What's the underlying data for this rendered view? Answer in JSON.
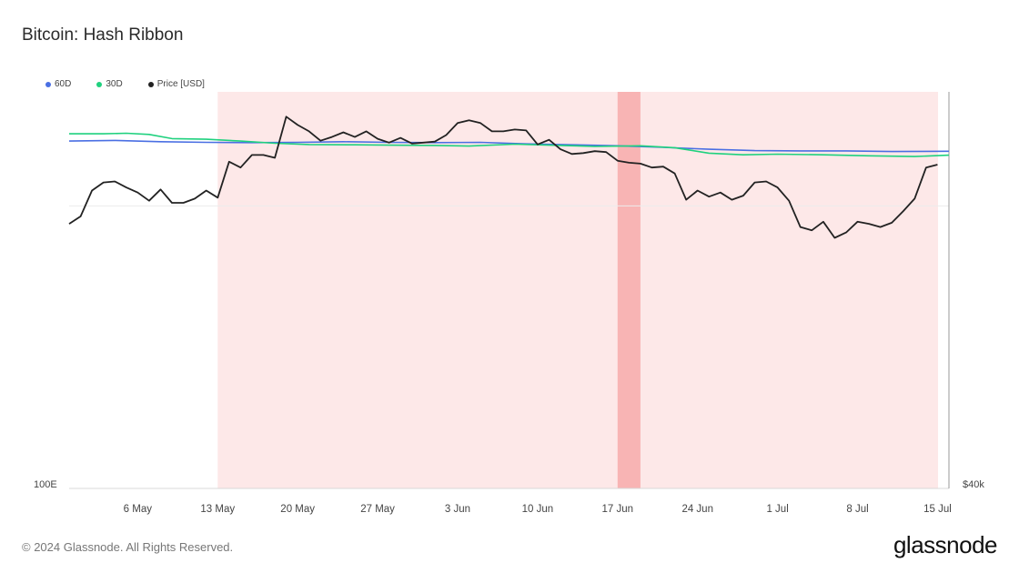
{
  "header": {
    "title": "Bitcoin: Hash Ribbon"
  },
  "legend": [
    {
      "label": "60D",
      "color": "#4a6fe3",
      "icon": "dot-icon"
    },
    {
      "label": "30D",
      "color": "#1fd17e",
      "icon": "dot-icon"
    },
    {
      "label": "Price [USD]",
      "color": "#222222",
      "icon": "dot-icon"
    }
  ],
  "footer": {
    "copyright": "© 2024 Glassnode. All Rights Reserved.",
    "brand": "glassnode"
  },
  "chart_data": {
    "type": "line",
    "title": "Bitcoin: Hash Ribbon",
    "x_start": "2024-04-30",
    "x_end": "2024-07-16",
    "x_ticks": [
      {
        "date": "2024-05-06",
        "label": "6 May"
      },
      {
        "date": "2024-05-13",
        "label": "13 May"
      },
      {
        "date": "2024-05-20",
        "label": "20 May"
      },
      {
        "date": "2024-05-27",
        "label": "27 May"
      },
      {
        "date": "2024-06-03",
        "label": "3 Jun"
      },
      {
        "date": "2024-06-10",
        "label": "10 Jun"
      },
      {
        "date": "2024-06-17",
        "label": "17 Jun"
      },
      {
        "date": "2024-06-24",
        "label": "24 Jun"
      },
      {
        "date": "2024-07-01",
        "label": "1 Jul"
      },
      {
        "date": "2024-07-08",
        "label": "8 Jul"
      },
      {
        "date": "2024-07-15",
        "label": "15 Jul"
      }
    ],
    "y_left": {
      "label": "100E",
      "scale": "log",
      "range": [
        100,
        800
      ]
    },
    "y_right": {
      "label": "$40k",
      "scale": "log",
      "range": [
        40000,
        74000
      ]
    },
    "legend_position": "top-left",
    "grid": "single horizontal line",
    "shaded_regions": [
      {
        "start": "2024-05-13",
        "end": "2024-07-16",
        "kind": "capitulation",
        "color": "#fde8e8"
      },
      {
        "start": "2024-06-17",
        "end": "2024-06-19",
        "kind": "buy signal",
        "color": "#f8b4b4"
      }
    ],
    "series": [
      {
        "name": "60D",
        "axis": "left",
        "color": "#4a6fe3",
        "points": [
          [
            "2024-04-30",
            618
          ],
          [
            "2024-05-04",
            620
          ],
          [
            "2024-05-08",
            616
          ],
          [
            "2024-05-12",
            614
          ],
          [
            "2024-05-16",
            613
          ],
          [
            "2024-05-20",
            614
          ],
          [
            "2024-05-24",
            616
          ],
          [
            "2024-05-28",
            614
          ],
          [
            "2024-06-01",
            613
          ],
          [
            "2024-06-05",
            614
          ],
          [
            "2024-06-09",
            609
          ],
          [
            "2024-06-13",
            606
          ],
          [
            "2024-06-17",
            603
          ],
          [
            "2024-06-21",
            598
          ],
          [
            "2024-06-25",
            592
          ],
          [
            "2024-06-29",
            588
          ],
          [
            "2024-07-03",
            587
          ],
          [
            "2024-07-07",
            587
          ],
          [
            "2024-07-11",
            585
          ],
          [
            "2024-07-16",
            586
          ]
        ]
      },
      {
        "name": "30D",
        "axis": "left",
        "color": "#1fd17e",
        "points": [
          [
            "2024-04-30",
            642
          ],
          [
            "2024-05-03",
            642
          ],
          [
            "2024-05-05",
            644
          ],
          [
            "2024-05-07",
            640
          ],
          [
            "2024-05-09",
            626
          ],
          [
            "2024-05-12",
            624
          ],
          [
            "2024-05-15",
            618
          ],
          [
            "2024-05-18",
            611
          ],
          [
            "2024-05-21",
            607
          ],
          [
            "2024-05-25",
            606
          ],
          [
            "2024-05-28",
            605
          ],
          [
            "2024-06-01",
            604
          ],
          [
            "2024-06-04",
            602
          ],
          [
            "2024-06-08",
            608
          ],
          [
            "2024-06-12",
            604
          ],
          [
            "2024-06-15",
            601
          ],
          [
            "2024-06-19",
            603
          ],
          [
            "2024-06-22",
            597
          ],
          [
            "2024-06-25",
            580
          ],
          [
            "2024-06-28",
            575
          ],
          [
            "2024-07-01",
            577
          ],
          [
            "2024-07-05",
            575
          ],
          [
            "2024-07-09",
            572
          ],
          [
            "2024-07-13",
            570
          ],
          [
            "2024-07-16",
            574
          ]
        ]
      },
      {
        "name": "Price [USD]",
        "axis": "right",
        "color": "#222222",
        "points": [
          [
            "2024-04-30",
            60300
          ],
          [
            "2024-05-01",
            61000
          ],
          [
            "2024-05-02",
            63500
          ],
          [
            "2024-05-03",
            64300
          ],
          [
            "2024-05-04",
            64400
          ],
          [
            "2024-05-05",
            63800
          ],
          [
            "2024-05-06",
            63300
          ],
          [
            "2024-05-07",
            62500
          ],
          [
            "2024-05-08",
            63600
          ],
          [
            "2024-05-09",
            62300
          ],
          [
            "2024-05-10",
            62300
          ],
          [
            "2024-05-11",
            62700
          ],
          [
            "2024-05-12",
            63500
          ],
          [
            "2024-05-13",
            62800
          ],
          [
            "2024-05-14",
            66400
          ],
          [
            "2024-05-15",
            65800
          ],
          [
            "2024-05-16",
            67100
          ],
          [
            "2024-05-17",
            67100
          ],
          [
            "2024-05-18",
            66800
          ],
          [
            "2024-05-19",
            71200
          ],
          [
            "2024-05-20",
            70300
          ],
          [
            "2024-05-21",
            69600
          ],
          [
            "2024-05-22",
            68600
          ],
          [
            "2024-05-23",
            69000
          ],
          [
            "2024-05-24",
            69500
          ],
          [
            "2024-05-25",
            69000
          ],
          [
            "2024-05-26",
            69600
          ],
          [
            "2024-05-27",
            68800
          ],
          [
            "2024-05-28",
            68400
          ],
          [
            "2024-05-29",
            68900
          ],
          [
            "2024-05-30",
            68300
          ],
          [
            "2024-05-31",
            68400
          ],
          [
            "2024-06-01",
            68500
          ],
          [
            "2024-06-02",
            69200
          ],
          [
            "2024-06-03",
            70500
          ],
          [
            "2024-06-04",
            70800
          ],
          [
            "2024-06-05",
            70500
          ],
          [
            "2024-06-06",
            69600
          ],
          [
            "2024-06-07",
            69600
          ],
          [
            "2024-06-08",
            69800
          ],
          [
            "2024-06-09",
            69700
          ],
          [
            "2024-06-10",
            68200
          ],
          [
            "2024-06-11",
            68700
          ],
          [
            "2024-06-12",
            67700
          ],
          [
            "2024-06-13",
            67200
          ],
          [
            "2024-06-14",
            67300
          ],
          [
            "2024-06-15",
            67500
          ],
          [
            "2024-06-16",
            67400
          ],
          [
            "2024-06-17",
            66500
          ],
          [
            "2024-06-18",
            66300
          ],
          [
            "2024-06-19",
            66200
          ],
          [
            "2024-06-20",
            65800
          ],
          [
            "2024-06-21",
            65900
          ],
          [
            "2024-06-22",
            65200
          ],
          [
            "2024-06-23",
            62600
          ],
          [
            "2024-06-24",
            63500
          ],
          [
            "2024-06-25",
            62900
          ],
          [
            "2024-06-26",
            63300
          ],
          [
            "2024-06-27",
            62600
          ],
          [
            "2024-06-28",
            63000
          ],
          [
            "2024-06-29",
            64300
          ],
          [
            "2024-06-30",
            64400
          ],
          [
            "2024-07-01",
            63800
          ],
          [
            "2024-07-02",
            62500
          ],
          [
            "2024-07-03",
            60000
          ],
          [
            "2024-07-04",
            59700
          ],
          [
            "2024-07-05",
            60500
          ],
          [
            "2024-07-06",
            59000
          ],
          [
            "2024-07-07",
            59500
          ],
          [
            "2024-07-08",
            60500
          ],
          [
            "2024-07-09",
            60300
          ],
          [
            "2024-07-10",
            60000
          ],
          [
            "2024-07-11",
            60400
          ],
          [
            "2024-07-12",
            61500
          ],
          [
            "2024-07-13",
            62700
          ],
          [
            "2024-07-14",
            65800
          ],
          [
            "2024-07-15",
            66100
          ]
        ]
      }
    ]
  }
}
